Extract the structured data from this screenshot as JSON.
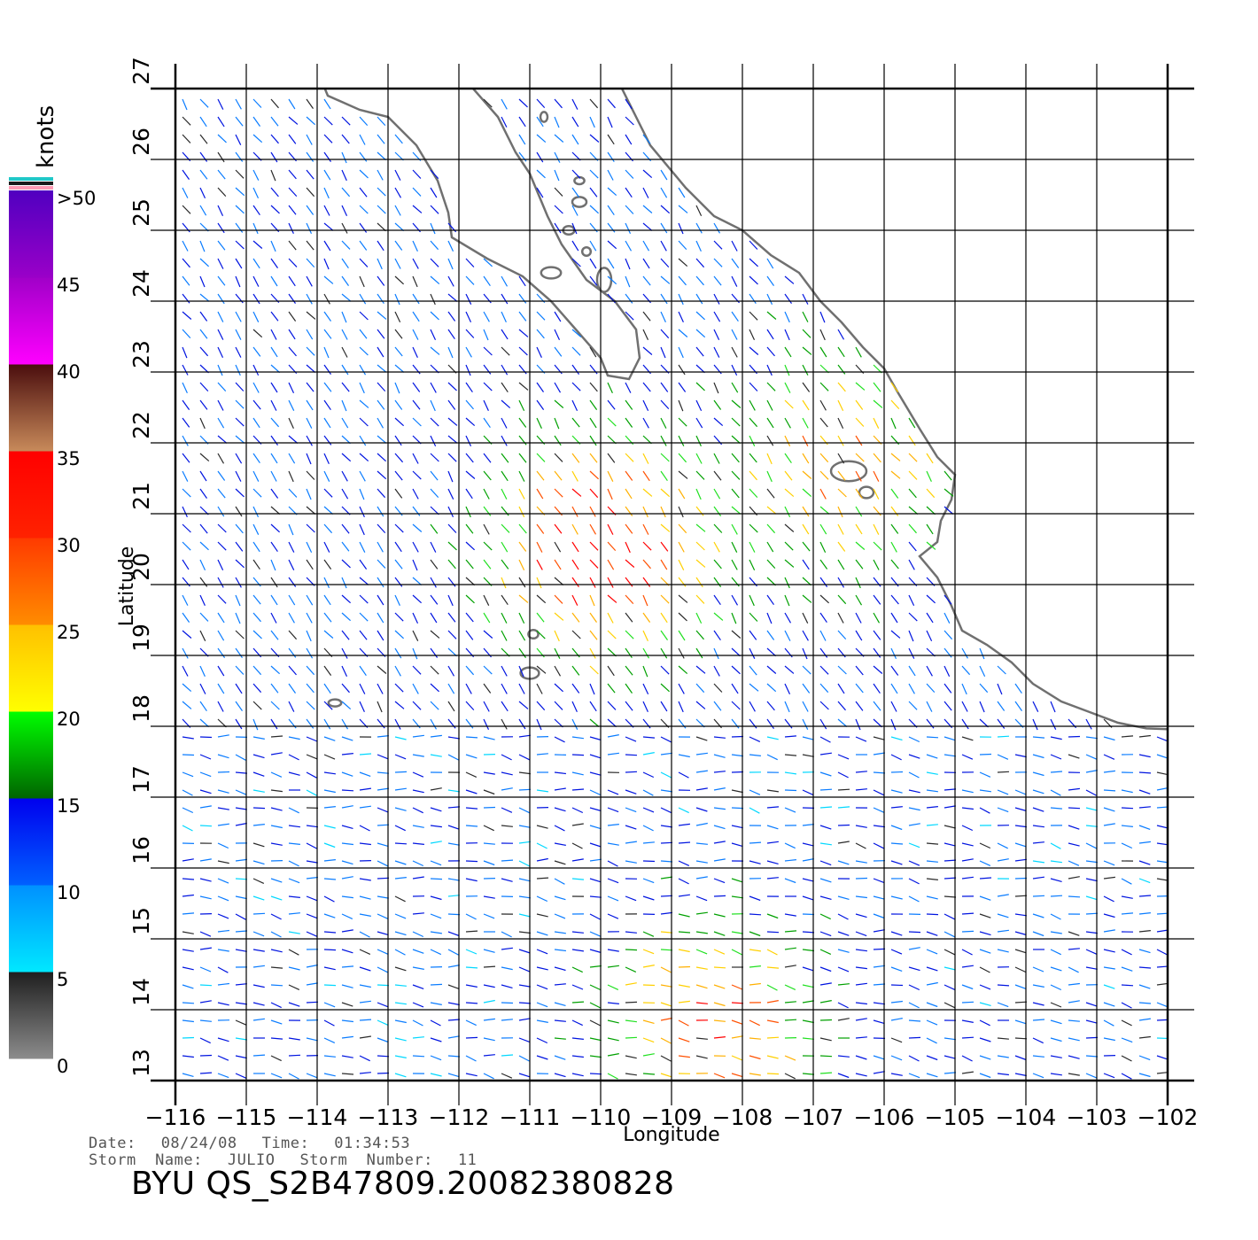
{
  "map": {
    "lon_range": [
      -116,
      -102
    ],
    "lat_range": [
      13,
      27
    ],
    "lon_ticks": [
      "−116",
      "−115",
      "−114",
      "−113",
      "−112",
      "−111",
      "−110",
      "−109",
      "−108",
      "−107",
      "−106",
      "−105",
      "−104",
      "−103",
      "−102"
    ],
    "lat_ticks": [
      "13",
      "14",
      "15",
      "16",
      "17",
      "18",
      "19",
      "20",
      "21",
      "22",
      "23",
      "24",
      "25",
      "26",
      "27"
    ],
    "xlabel": "Longitude",
    "ylabel": "Latitude",
    "grid": true,
    "coast_color": "#707070",
    "land_color": "#ffffff",
    "storm_centers": [
      {
        "lon": -110.0,
        "lat": 20.6,
        "max_knots": 35
      },
      {
        "lon": -108.5,
        "lat": 13.7,
        "max_knots": 30
      },
      {
        "lon": -106.6,
        "lat": 21.8,
        "max_knots": 27
      }
    ]
  },
  "colorbar": {
    "unit": "knots",
    "labels": [
      ">50",
      "45",
      "40",
      "35",
      "30",
      "25",
      "20",
      "15",
      "10",
      "5",
      "0"
    ],
    "segments": [
      {
        "from": 0,
        "to": 5,
        "colors": [
          "#8c8c8c",
          "#1e1e1e"
        ]
      },
      {
        "from": 5,
        "to": 10,
        "colors": [
          "#00e8ff",
          "#0090ff"
        ]
      },
      {
        "from": 10,
        "to": 15,
        "colors": [
          "#0060ff",
          "#0000ee"
        ]
      },
      {
        "from": 15,
        "to": 20,
        "colors": [
          "#006400",
          "#00ff00"
        ]
      },
      {
        "from": 20,
        "to": 25,
        "colors": [
          "#ffff00",
          "#ffc000"
        ]
      },
      {
        "from": 25,
        "to": 30,
        "colors": [
          "#ff8c00",
          "#ff3a00"
        ]
      },
      {
        "from": 30,
        "to": 35,
        "colors": [
          "#ff2200",
          "#ff0000"
        ]
      },
      {
        "from": 35,
        "to": 40,
        "colors": [
          "#c88a5a",
          "#4a0d0d"
        ]
      },
      {
        "from": 40,
        "to": 45,
        "colors": [
          "#ff00ff",
          "#a000c8"
        ]
      },
      {
        "from": 45,
        "to": 50,
        "colors": [
          "#9a00c8",
          "#5000c0"
        ]
      }
    ],
    "top_strip_colors": [
      "#20c8c8",
      "#1a1a1a",
      "#ff9ab4"
    ]
  },
  "metadata": {
    "date_label": "Date:",
    "date": "08/24/08",
    "time_label": "Time:",
    "time": "01:34:53",
    "storm_name_label": "Storm  Name:",
    "storm_name": "JULIO",
    "storm_number_label": "Storm  Number:",
    "storm_number": "11"
  },
  "title": "BYU  QS_S2B47809.20082380828"
}
